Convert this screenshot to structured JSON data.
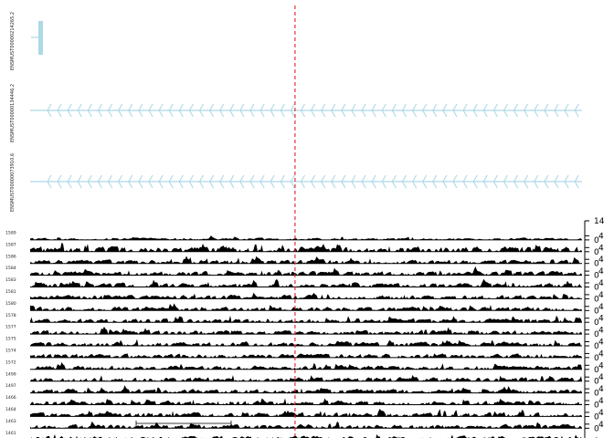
{
  "transcripts": [
    {
      "id": "ENSMUST00000214265.2",
      "structure": "short-block"
    },
    {
      "id": "ENSMUST00000134446.2",
      "structure": "long-intron",
      "strand": "-"
    },
    {
      "id": "ENSMUST00000073910.6",
      "structure": "long-intron",
      "strand": "-"
    }
  ],
  "tracks": [
    {
      "label": "1589"
    },
    {
      "label": "1587"
    },
    {
      "label": "1586"
    },
    {
      "label": "1584"
    },
    {
      "label": "1583"
    },
    {
      "label": "1581"
    },
    {
      "label": "1580"
    },
    {
      "label": "1578"
    },
    {
      "label": "1577"
    },
    {
      "label": "1575"
    },
    {
      "label": "1574"
    },
    {
      "label": "1572"
    },
    {
      "label": "1499"
    },
    {
      "label": "1497"
    },
    {
      "label": "1466"
    },
    {
      "label": "1464"
    },
    {
      "label": "1463"
    },
    {
      "label": "1461"
    }
  ],
  "axis": {
    "top_tick": "14",
    "repeated_ticks": [
      "0",
      "4"
    ],
    "bottom_tick": "0"
  },
  "colors": {
    "transcript": "#add8e6",
    "coverage": "#000000",
    "marker": "#e02020"
  },
  "marker_position": 0.48,
  "scale_bar": true
}
